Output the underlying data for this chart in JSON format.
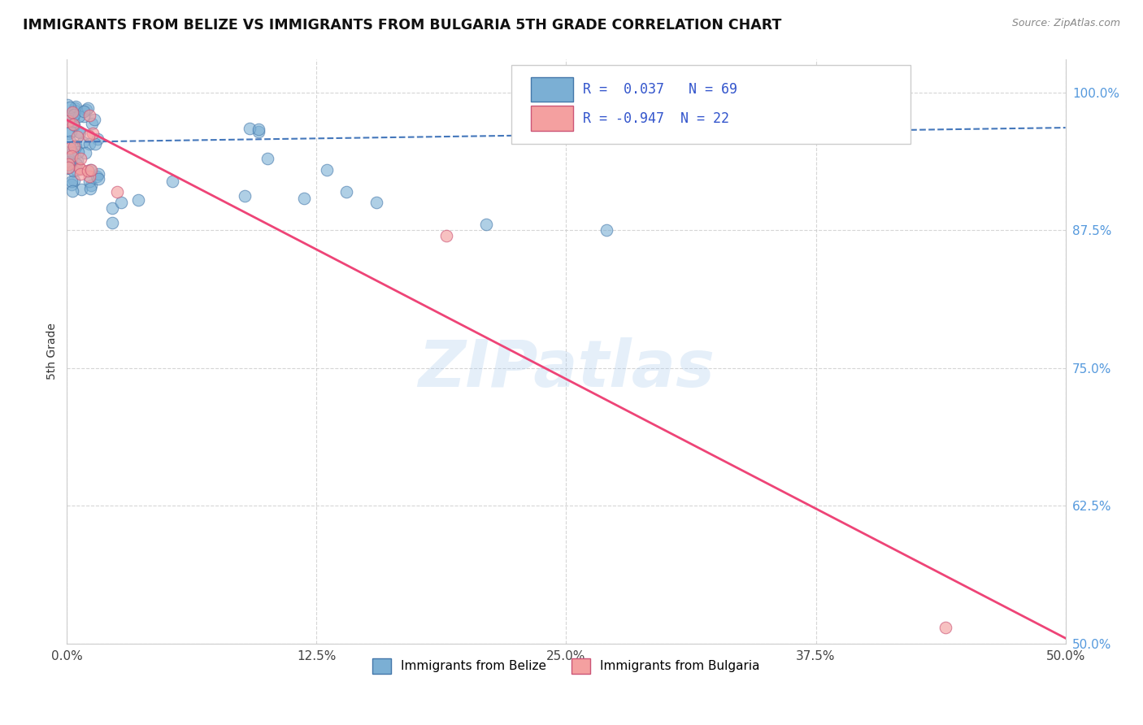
{
  "title": "IMMIGRANTS FROM BELIZE VS IMMIGRANTS FROM BULGARIA 5TH GRADE CORRELATION CHART",
  "source_text": "Source: ZipAtlas.com",
  "ylabel": "5th Grade",
  "xlim": [
    0.0,
    0.5
  ],
  "ylim": [
    0.5,
    1.03
  ],
  "xtick_labels": [
    "0.0%",
    "12.5%",
    "25.0%",
    "37.5%",
    "50.0%"
  ],
  "xtick_values": [
    0.0,
    0.125,
    0.25,
    0.375,
    0.5
  ],
  "ytick_labels": [
    "50.0%",
    "62.5%",
    "75.0%",
    "87.5%",
    "100.0%"
  ],
  "ytick_values": [
    0.5,
    0.625,
    0.75,
    0.875,
    1.0
  ],
  "belize_color": "#7bafd4",
  "belize_edge_color": "#4477aa",
  "bulgaria_color": "#f4a0a0",
  "bulgaria_edge_color": "#cc5577",
  "belize_R": 0.037,
  "belize_N": 69,
  "bulgaria_R": -0.947,
  "bulgaria_N": 22,
  "watermark_text": "ZIPatlas",
  "legend_label_belize": "Immigrants from Belize",
  "legend_label_bulgaria": "Immigrants from Bulgaria",
  "belize_trend_y0": 0.955,
  "belize_trend_y1": 0.968,
  "bulgaria_trend_x0": 0.0,
  "bulgaria_trend_y0": 0.975,
  "bulgaria_trend_x1": 0.5,
  "bulgaria_trend_y1": 0.505
}
